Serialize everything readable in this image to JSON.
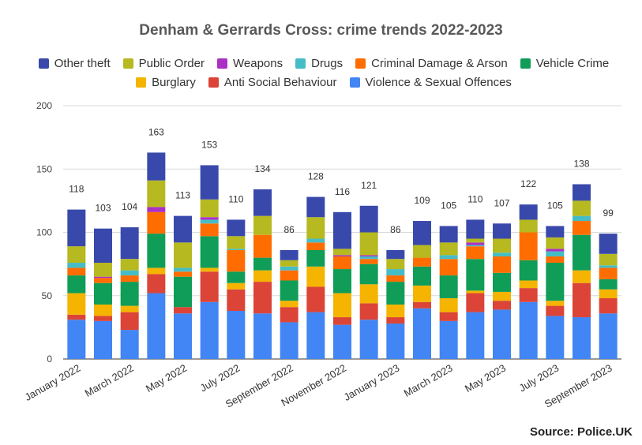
{
  "source_label": "Source: Police.UK",
  "colors": {
    "Violence & Sexual Offences": "#4285f4",
    "Anti Social Behaviour": "#db4437",
    "Burglary": "#f4b400",
    "Vehicle Crime": "#0f9d58",
    "Criminal Damage & Arson": "#ff6d00",
    "Drugs": "#46bdc6",
    "Weapons": "#ab30c4",
    "Public Order": "#b6b91f",
    "Other theft": "#3949ab"
  },
  "legend_rows": [
    [
      "Other theft",
      "Public Order",
      "Weapons",
      "Drugs",
      "Criminal Damage & Arson",
      "Vehicle Crime"
    ],
    [
      "Burglary",
      "Anti Social Behaviour",
      "Violence & Sexual Offences"
    ]
  ],
  "chart_data": {
    "type": "bar",
    "stacked": true,
    "title": "Denham & Gerrards Cross: crime trends 2022-2023",
    "xlabel": "",
    "ylabel": "",
    "ylim": [
      0,
      200
    ],
    "yticks": [
      0,
      50,
      100,
      150,
      200
    ],
    "grid": true,
    "legend_position": "top",
    "categories": [
      "January 2022",
      "February 2022",
      "March 2022",
      "April 2022",
      "May 2022",
      "June 2022",
      "July 2022",
      "August 2022",
      "September 2022",
      "October 2022",
      "November 2022",
      "December 2022",
      "January 2023",
      "February 2023",
      "March 2023",
      "April 2023",
      "May 2023",
      "June 2023",
      "July 2023",
      "August 2023",
      "September 2023"
    ],
    "visible_tick_labels": [
      "January 2022",
      "March 2022",
      "May 2022",
      "July 2022",
      "September 2022",
      "November 2022",
      "January 2023",
      "March 2023",
      "May 2023",
      "July 2023",
      "September 2023"
    ],
    "totals": [
      118,
      103,
      104,
      163,
      113,
      153,
      110,
      134,
      86,
      128,
      116,
      121,
      86,
      109,
      105,
      110,
      107,
      122,
      105,
      138,
      99
    ],
    "series": [
      {
        "name": "Violence & Sexual Offences",
        "values": [
          31,
          30,
          23,
          52,
          36,
          45,
          38,
          36,
          29,
          37,
          27,
          31,
          28,
          40,
          30,
          37,
          39,
          45,
          34,
          33,
          36
        ]
      },
      {
        "name": "Anti Social Behaviour",
        "values": [
          4,
          4,
          14,
          15,
          5,
          24,
          17,
          25,
          12,
          20,
          6,
          13,
          5,
          5,
          7,
          15,
          7,
          11,
          8,
          27,
          12
        ]
      },
      {
        "name": "Burglary",
        "values": [
          17,
          9,
          5,
          5,
          0,
          3,
          5,
          9,
          5,
          16,
          19,
          15,
          10,
          13,
          11,
          2,
          7,
          6,
          4,
          10,
          7
        ]
      },
      {
        "name": "Vehicle Crime",
        "values": [
          14,
          17,
          19,
          27,
          24,
          25,
          9,
          10,
          16,
          13,
          19,
          16,
          18,
          15,
          18,
          25,
          15,
          16,
          30,
          28,
          8
        ]
      },
      {
        "name": "Criminal Damage & Arson",
        "values": [
          6,
          4,
          5,
          17,
          4,
          10,
          17,
          18,
          8,
          6,
          10,
          4,
          5,
          7,
          13,
          10,
          13,
          22,
          5,
          11,
          9
        ]
      },
      {
        "name": "Drugs",
        "values": [
          4,
          0,
          4,
          0,
          3,
          3,
          1,
          0,
          3,
          3,
          0,
          2,
          5,
          0,
          3,
          1,
          3,
          0,
          4,
          4,
          2
        ]
      },
      {
        "name": "Weapons",
        "values": [
          0,
          1,
          0,
          4,
          0,
          2,
          0,
          0,
          0,
          0,
          1,
          1,
          0,
          0,
          0,
          2,
          0,
          0,
          2,
          0,
          0
        ]
      },
      {
        "name": "Public Order",
        "values": [
          13,
          11,
          9,
          21,
          20,
          14,
          10,
          15,
          5,
          17,
          5,
          18,
          8,
          10,
          10,
          3,
          11,
          10,
          9,
          12,
          9
        ]
      },
      {
        "name": "Other theft",
        "values": [
          29,
          27,
          25,
          22,
          21,
          27,
          13,
          21,
          8,
          16,
          29,
          21,
          7,
          19,
          13,
          15,
          12,
          12,
          9,
          13,
          16
        ]
      }
    ]
  }
}
